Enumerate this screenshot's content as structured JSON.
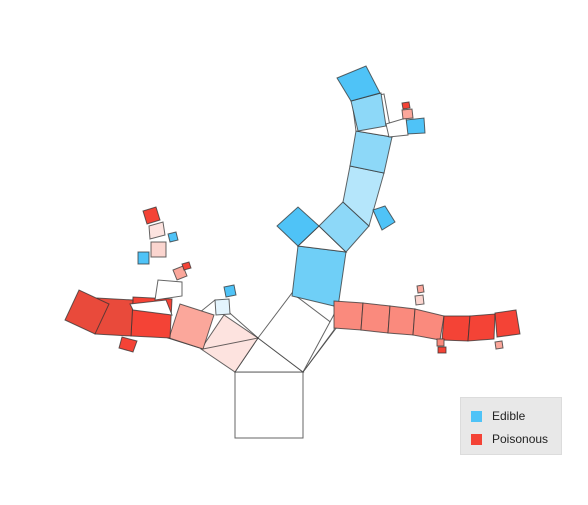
{
  "diagram": {
    "type": "pythagoras-tree",
    "legend": [
      {
        "label": "Edible",
        "color": "#4fc3f7"
      },
      {
        "label": "Poisonous",
        "color": "#f44336"
      }
    ]
  }
}
